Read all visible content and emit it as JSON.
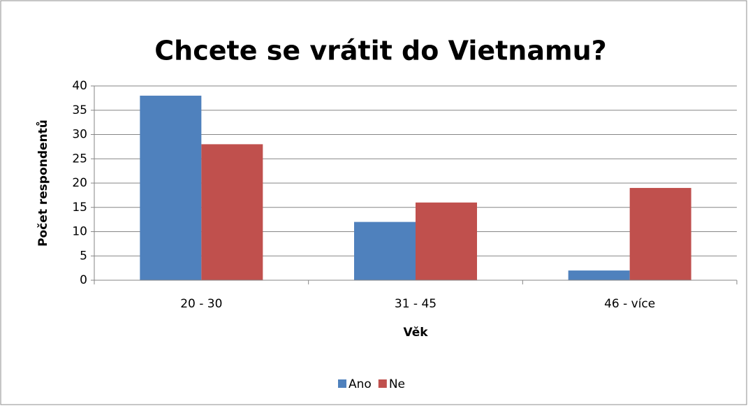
{
  "chart_data": {
    "type": "bar",
    "title": "Chcete se vrátit do Vietnamu?",
    "x_label": "Věk",
    "y_label": "Počet respondentů",
    "categories": [
      "20 - 30",
      "31 - 45",
      "46 - více"
    ],
    "series": [
      {
        "name": "Ano",
        "color": "#4f81bd",
        "values": [
          38,
          12,
          2
        ]
      },
      {
        "name": "Ne",
        "color": "#c0504d",
        "values": [
          28,
          16,
          19
        ]
      }
    ],
    "ylim": [
      0,
      40
    ],
    "yticks": [
      0,
      5,
      10,
      15,
      20,
      25,
      30,
      35,
      40
    ],
    "grid": true,
    "legend": "bottom"
  }
}
